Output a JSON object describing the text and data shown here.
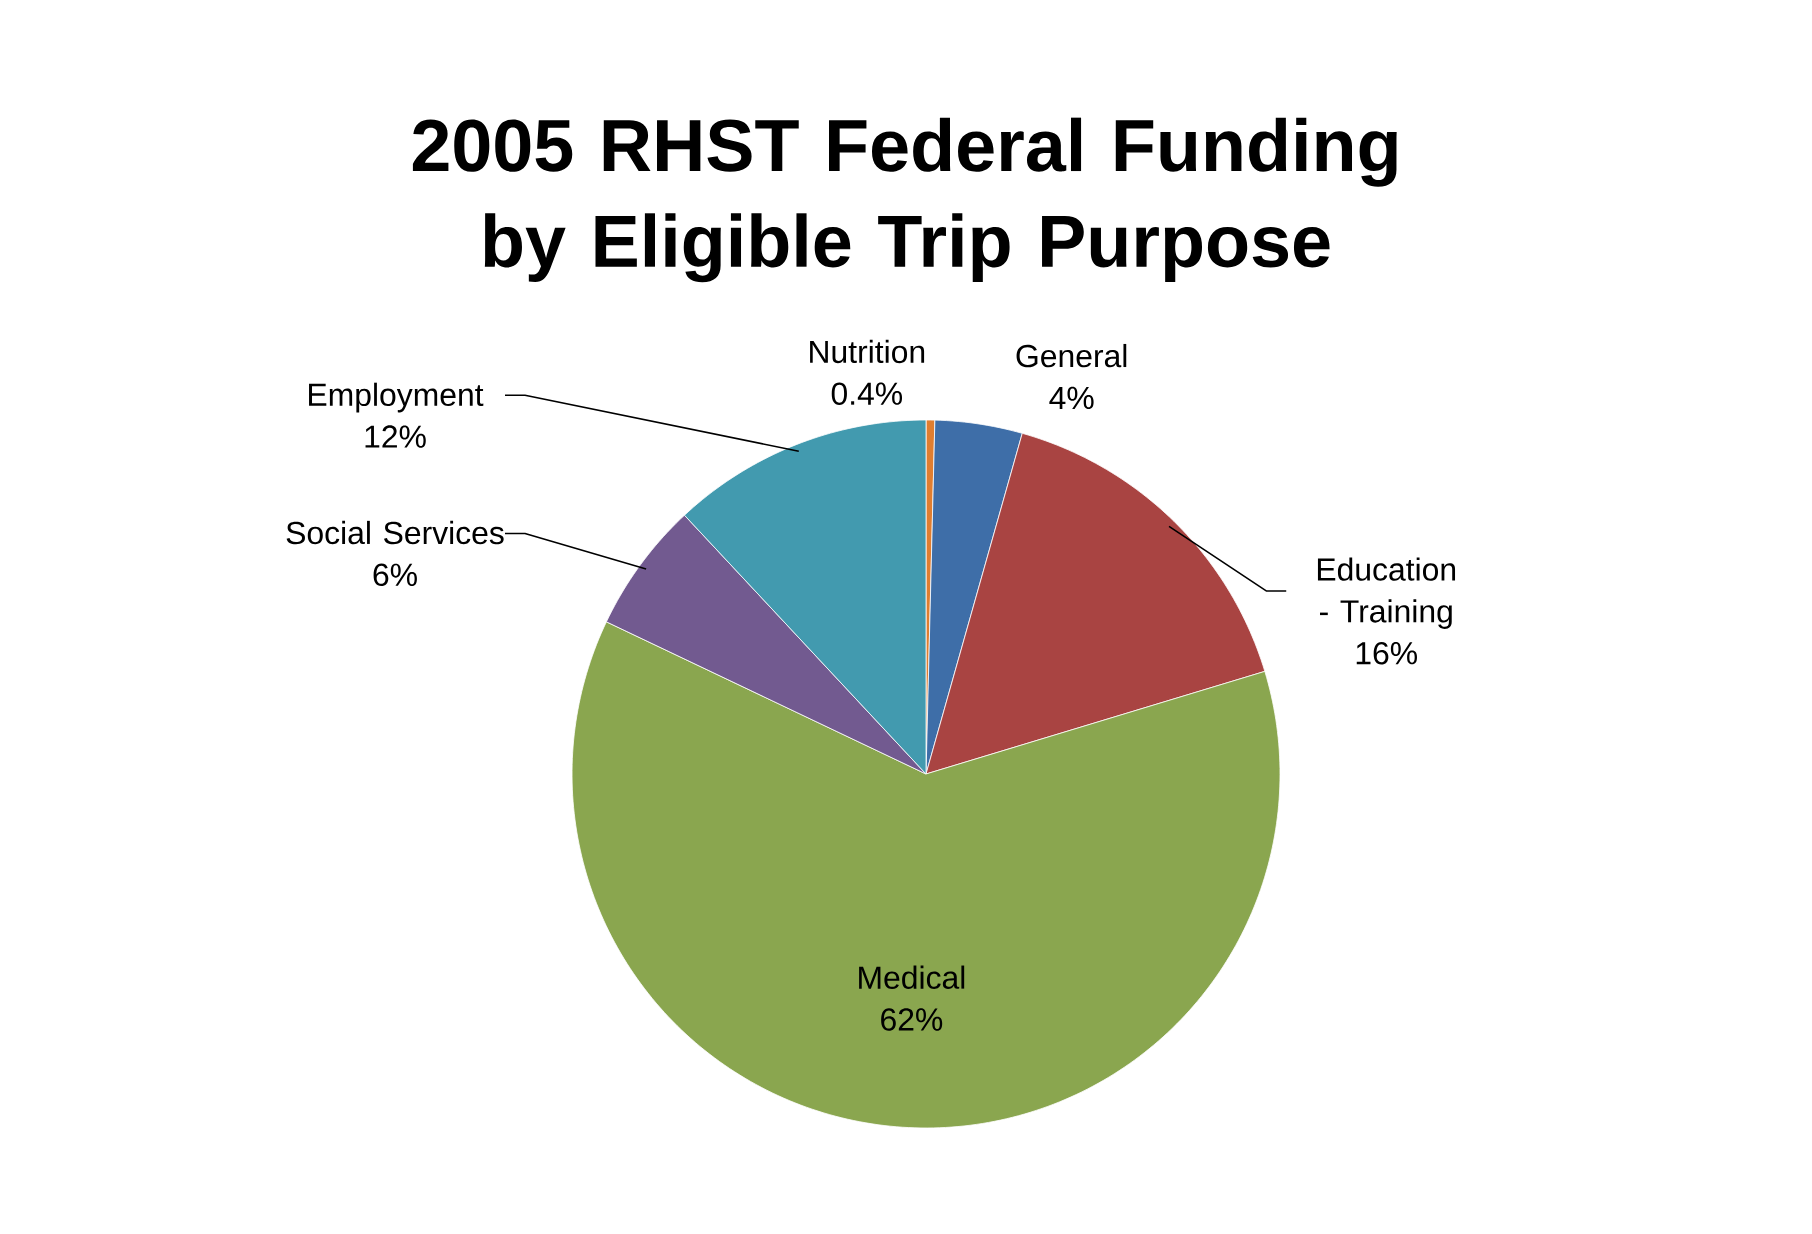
{
  "chart_data": {
    "type": "pie",
    "title": "2005 RHST Federal Funding by Eligible Trip Purpose",
    "categories": [
      "Nutrition",
      "General",
      "Education - Training",
      "Medical",
      "Social Services",
      "Employment"
    ],
    "values": [
      0.4,
      4,
      16,
      62,
      6,
      12
    ],
    "value_labels": [
      "0.4%",
      "4%",
      "16%",
      "62%",
      "6%",
      "12%"
    ],
    "colors": [
      "#e07e30",
      "#3e6ea8",
      "#a94442",
      "#8aa64f",
      "#725a90",
      "#429aaf"
    ]
  }
}
